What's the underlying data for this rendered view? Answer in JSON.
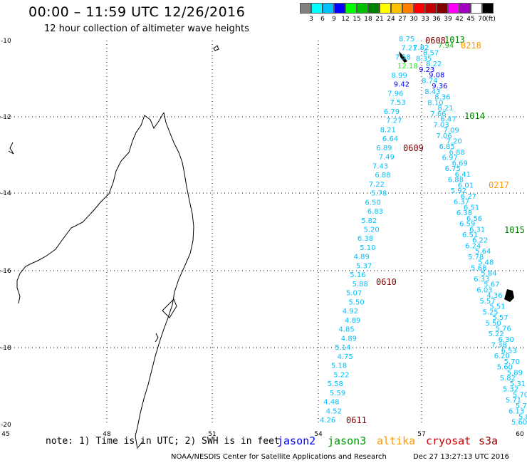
{
  "header": {
    "title": "00:00 – 11:59 UTC 12/26/2016",
    "subtitle": "12 hour collection of altimeter wave heights"
  },
  "color_scale": {
    "unit_label": "(ft)",
    "bins": [
      {
        "label": "3",
        "color": "#808080"
      },
      {
        "label": "6",
        "color": "#00ffff"
      },
      {
        "label": "9",
        "color": "#00c0ff"
      },
      {
        "label": "12",
        "color": "#0000ff"
      },
      {
        "label": "15",
        "color": "#00ff00"
      },
      {
        "label": "18",
        "color": "#00c000"
      },
      {
        "label": "21",
        "color": "#008000"
      },
      {
        "label": "24",
        "color": "#ffff00"
      },
      {
        "label": "27",
        "color": "#ffc000"
      },
      {
        "label": "30",
        "color": "#ff8000"
      },
      {
        "label": "33",
        "color": "#ff0000"
      },
      {
        "label": "36",
        "color": "#c00000"
      },
      {
        "label": "39",
        "color": "#800000"
      },
      {
        "label": "42",
        "color": "#ff00ff"
      },
      {
        "label": "45",
        "color": "#a000c0"
      },
      {
        "label": "70",
        "color": "#ffffff"
      },
      {
        "label": "",
        "color": "#000000"
      }
    ]
  },
  "map": {
    "lon_ticks": [
      "45",
      "48",
      "51",
      "54",
      "57",
      "60"
    ],
    "lat_ticks": [
      "-10",
      "-12",
      "-14",
      "-16",
      "-18",
      "-20"
    ],
    "track_times": [
      {
        "label": "0608",
        "color": "#800000"
      },
      {
        "label": "0609",
        "color": "#800000"
      },
      {
        "label": "0610",
        "color": "#800000"
      },
      {
        "label": "0611",
        "color": "#800000"
      },
      {
        "label": "1013",
        "color": "#008000"
      },
      {
        "label": "1014",
        "color": "#008000"
      },
      {
        "label": "1015",
        "color": "#008000"
      },
      {
        "label": "0218",
        "color": "#ff9900"
      },
      {
        "label": "0217",
        "color": "#ff9900"
      }
    ],
    "track_a": [
      {
        "v": "8.75",
        "c": "#00c0ff"
      },
      {
        "v": "7.21",
        "c": "#00c0ff"
      },
      {
        "v": "7.58",
        "c": "#00c0ff"
      },
      {
        "v": "12.18",
        "c": "#00ff00"
      },
      {
        "v": "8.99",
        "c": "#00c0ff"
      },
      {
        "v": "9.42",
        "c": "#0000ff"
      },
      {
        "v": "7.96",
        "c": "#00c0ff"
      },
      {
        "v": "7.53",
        "c": "#00c0ff"
      },
      {
        "v": "6.79",
        "c": "#00c0ff"
      },
      {
        "v": "7.27",
        "c": "#00c0ff"
      },
      {
        "v": "8.21",
        "c": "#00c0ff"
      },
      {
        "v": "6.64",
        "c": "#00c0ff"
      },
      {
        "v": "6.89",
        "c": "#00c0ff"
      },
      {
        "v": "7.49",
        "c": "#00c0ff"
      },
      {
        "v": "7.43",
        "c": "#00c0ff"
      },
      {
        "v": "6.88",
        "c": "#00c0ff"
      },
      {
        "v": "7.22",
        "c": "#00c0ff"
      },
      {
        "v": "5.78",
        "c": "#00c0ff"
      },
      {
        "v": "6.50",
        "c": "#00c0ff"
      },
      {
        "v": "6.83",
        "c": "#00c0ff"
      },
      {
        "v": "5.82",
        "c": "#00c0ff"
      },
      {
        "v": "5.20",
        "c": "#00c0ff"
      },
      {
        "v": "6.38",
        "c": "#00c0ff"
      },
      {
        "v": "5.10",
        "c": "#00c0ff"
      },
      {
        "v": "4.89",
        "c": "#00c0ff"
      },
      {
        "v": "5.37",
        "c": "#00c0ff"
      },
      {
        "v": "5.16",
        "c": "#00c0ff"
      },
      {
        "v": "5.88",
        "c": "#00c0ff"
      },
      {
        "v": "5.07",
        "c": "#00c0ff"
      },
      {
        "v": "5.50",
        "c": "#00c0ff"
      },
      {
        "v": "4.92",
        "c": "#00c0ff"
      },
      {
        "v": "4.89",
        "c": "#00c0ff"
      },
      {
        "v": "4.85",
        "c": "#00c0ff"
      },
      {
        "v": "4.89",
        "c": "#00c0ff"
      },
      {
        "v": "5.14",
        "c": "#00c0ff"
      },
      {
        "v": "4.75",
        "c": "#00c0ff"
      },
      {
        "v": "5.18",
        "c": "#00c0ff"
      },
      {
        "v": "5.22",
        "c": "#00c0ff"
      },
      {
        "v": "5.58",
        "c": "#00c0ff"
      },
      {
        "v": "5.59",
        "c": "#00c0ff"
      },
      {
        "v": "4.48",
        "c": "#00c0ff"
      },
      {
        "v": "4.52",
        "c": "#00c0ff"
      },
      {
        "v": "4.26",
        "c": "#00c0ff"
      }
    ],
    "track_b": [
      {
        "v": "7.82",
        "c": "#00c0ff"
      },
      {
        "v": "8.57",
        "c": "#00c0ff"
      },
      {
        "v": "8.35",
        "c": "#00c0ff"
      },
      {
        "v": "8.22",
        "c": "#00c0ff"
      },
      {
        "v": "9.23",
        "c": "#0000ff"
      },
      {
        "v": "9.08",
        "c": "#0000ff"
      },
      {
        "v": "8.74",
        "c": "#00c0ff"
      },
      {
        "v": "9.36",
        "c": "#0000ff"
      },
      {
        "v": "8.43",
        "c": "#00c0ff"
      },
      {
        "v": "8.36",
        "c": "#00c0ff"
      },
      {
        "v": "8.10",
        "c": "#00c0ff"
      },
      {
        "v": "8.21",
        "c": "#00c0ff"
      },
      {
        "v": "7.66",
        "c": "#00c0ff"
      },
      {
        "v": "6.47",
        "c": "#00c0ff"
      },
      {
        "v": "7.03",
        "c": "#00c0ff"
      },
      {
        "v": "7.09",
        "c": "#00c0ff"
      },
      {
        "v": "7.06",
        "c": "#00c0ff"
      },
      {
        "v": "7.20",
        "c": "#00c0ff"
      },
      {
        "v": "6.85",
        "c": "#00c0ff"
      },
      {
        "v": "6.88",
        "c": "#00c0ff"
      },
      {
        "v": "6.97",
        "c": "#00c0ff"
      },
      {
        "v": "6.69",
        "c": "#00c0ff"
      },
      {
        "v": "6.75",
        "c": "#00c0ff"
      },
      {
        "v": "6.41",
        "c": "#00c0ff"
      },
      {
        "v": "6.88",
        "c": "#00c0ff"
      },
      {
        "v": "6.01",
        "c": "#00c0ff"
      },
      {
        "v": "5.92",
        "c": "#00c0ff"
      },
      {
        "v": "6.27",
        "c": "#00c0ff"
      },
      {
        "v": "6.37",
        "c": "#00c0ff"
      },
      {
        "v": "6.51",
        "c": "#00c0ff"
      },
      {
        "v": "6.38",
        "c": "#00c0ff"
      },
      {
        "v": "6.56",
        "c": "#00c0ff"
      },
      {
        "v": "6.59",
        "c": "#00c0ff"
      },
      {
        "v": "6.31",
        "c": "#00c0ff"
      },
      {
        "v": "6.51",
        "c": "#00c0ff"
      },
      {
        "v": "6.22",
        "c": "#00c0ff"
      },
      {
        "v": "6.24",
        "c": "#00c0ff"
      },
      {
        "v": "5.64",
        "c": "#00c0ff"
      },
      {
        "v": "5.78",
        "c": "#00c0ff"
      },
      {
        "v": "5.48",
        "c": "#00c0ff"
      },
      {
        "v": "5.68",
        "c": "#00c0ff"
      },
      {
        "v": "5.84",
        "c": "#00c0ff"
      },
      {
        "v": "6.33",
        "c": "#00c0ff"
      },
      {
        "v": "5.67",
        "c": "#00c0ff"
      },
      {
        "v": "6.03",
        "c": "#00c0ff"
      },
      {
        "v": "4.36",
        "c": "#00c0ff"
      },
      {
        "v": "5.57",
        "c": "#00c0ff"
      },
      {
        "v": "5.51",
        "c": "#00c0ff"
      },
      {
        "v": "5.25",
        "c": "#00c0ff"
      },
      {
        "v": "5.57",
        "c": "#00c0ff"
      },
      {
        "v": "5.50",
        "c": "#00c0ff"
      },
      {
        "v": "5.76",
        "c": "#00c0ff"
      },
      {
        "v": "5.22",
        "c": "#00c0ff"
      },
      {
        "v": "6.30",
        "c": "#00c0ff"
      },
      {
        "v": "7.38",
        "c": "#00c0ff"
      },
      {
        "v": "6.53",
        "c": "#00c0ff"
      },
      {
        "v": "6.20",
        "c": "#00c0ff"
      },
      {
        "v": "5.70",
        "c": "#00c0ff"
      },
      {
        "v": "5.60",
        "c": "#00c0ff"
      },
      {
        "v": "5.89",
        "c": "#00c0ff"
      },
      {
        "v": "5.82",
        "c": "#00c0ff"
      },
      {
        "v": "5.31",
        "c": "#00c0ff"
      },
      {
        "v": "5.32",
        "c": "#00c0ff"
      },
      {
        "v": "5.70",
        "c": "#00c0ff"
      },
      {
        "v": "5.71",
        "c": "#00c0ff"
      },
      {
        "v": "5.71",
        "c": "#00c0ff"
      },
      {
        "v": "6.13",
        "c": "#00c0ff"
      },
      {
        "v": "5.84",
        "c": "#00c0ff"
      },
      {
        "v": "5.60",
        "c": "#00c0ff"
      }
    ],
    "extras": [
      {
        "v": "7.94",
        "c": "#00c000"
      }
    ]
  },
  "footer": {
    "note": "note: 1) Time is in UTC; 2) SWH is in feet",
    "satellites": [
      {
        "name": "jason2",
        "color": "#0000ff"
      },
      {
        "name": "jason3",
        "color": "#009900"
      },
      {
        "name": "altika",
        "color": "#ff9900"
      },
      {
        "name": "cryosat",
        "color": "#cc0000"
      },
      {
        "name": "s3a",
        "color": "#990000"
      }
    ],
    "credit": "NOAA/NESDIS Center for Satellite Applications and Research",
    "timestamp": "Dec 27 13:27:13 UTC 2016"
  }
}
